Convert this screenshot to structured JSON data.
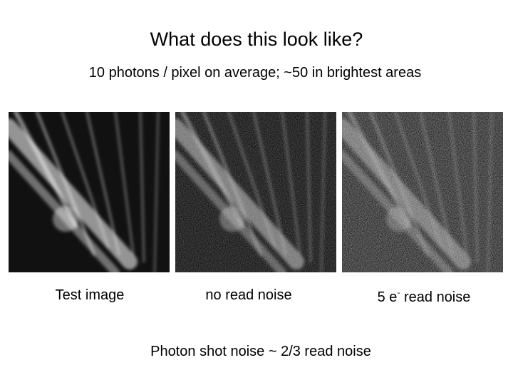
{
  "header": {
    "title": "What does this look like?",
    "subtitle": "10 photons / pixel on average; ~50 in brightest areas"
  },
  "captions": [
    {
      "text": "Test image"
    },
    {
      "text": "no read noise"
    },
    {
      "before": "5 e",
      "sup": "-",
      "after": " read noise"
    }
  ],
  "footer": "Photon shot noise ~ 2/3 read noise"
}
